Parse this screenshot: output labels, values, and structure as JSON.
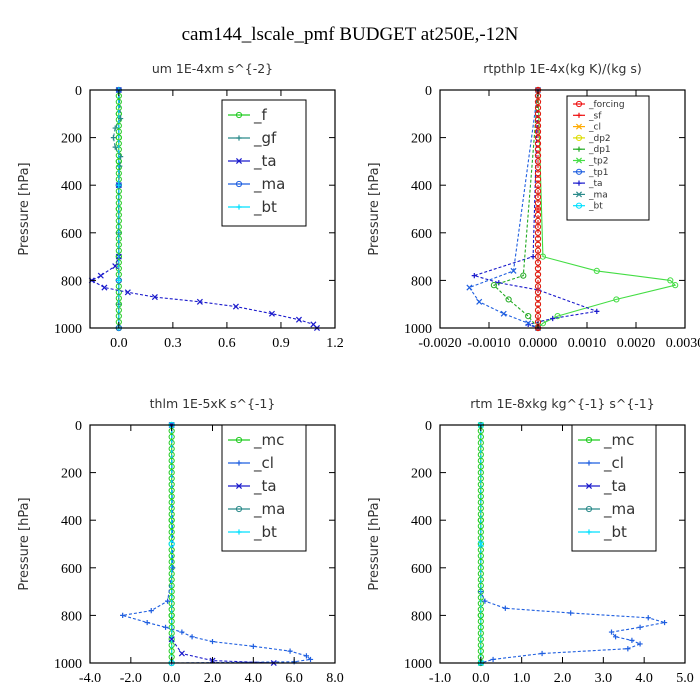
{
  "figure_title": "cam144_lscale_pmf  BUDGET at250E,-12N",
  "colors": {
    "green": "#22cc22",
    "teal": "#2a8a8a",
    "blue": "#1f5fe0",
    "navy": "#1a1acc",
    "cyan": "#00e0ff",
    "red": "#ee1111",
    "orange": "#ffaa00",
    "yellow": "#dddd00",
    "lime": "#44dd44"
  },
  "chart_data": [
    {
      "type": "line",
      "title": "um   1E-4xm s^{-2}",
      "ylabel": "Pressure [hPa]",
      "xlim": [
        -0.16,
        1.2
      ],
      "ylim": [
        1000,
        0
      ],
      "xticks": [
        "0.0",
        "0.3",
        "0.6",
        "0.9",
        "1.2"
      ],
      "xtick_values": [
        0,
        0.3,
        0.6,
        0.9,
        1.2
      ],
      "yticks": [
        "0",
        "200",
        "400",
        "600",
        "800",
        "1000"
      ],
      "ytick_values": [
        0,
        200,
        400,
        600,
        800,
        1000
      ],
      "legend": [
        "_f",
        "_gf",
        "_ta",
        "_ma",
        "_bt"
      ],
      "legend_colors": [
        "#22cc22",
        "#2a8a8a",
        "#1a1acc",
        "#1f5fe0",
        "#00e0ff"
      ],
      "series": [
        {
          "name": "_f",
          "color": "#22cc22",
          "x": [
            0,
            0,
            0,
            0,
            0,
            0,
            0,
            0,
            0,
            0,
            0
          ],
          "y": [
            0,
            100,
            200,
            300,
            400,
            500,
            600,
            700,
            800,
            900,
            1000
          ]
        },
        {
          "name": "_gf",
          "color": "#2a8a8a",
          "x": [
            0,
            0.01,
            -0.02,
            -0.03,
            -0.02,
            0.01,
            0.005,
            0,
            0,
            0,
            0,
            0
          ],
          "y": [
            0,
            120,
            160,
            200,
            240,
            280,
            320,
            400,
            600,
            800,
            900,
            1000
          ]
        },
        {
          "name": "_ta",
          "color": "#1a1acc",
          "x": [
            0,
            0,
            0,
            -0.02,
            -0.1,
            -0.15,
            -0.08,
            0.05,
            0.2,
            0.45,
            0.65,
            0.85,
            1.0,
            1.08,
            1.1
          ],
          "y": [
            0,
            400,
            700,
            740,
            780,
            800,
            830,
            850,
            870,
            890,
            910,
            940,
            965,
            985,
            1000
          ]
        },
        {
          "name": "_ma",
          "color": "#1f5fe0",
          "x": [
            0,
            0,
            0,
            0
          ],
          "y": [
            0,
            400,
            800,
            1000
          ]
        },
        {
          "name": "_bt",
          "color": "#00e0ff",
          "x": [
            0,
            0,
            0,
            0
          ],
          "y": [
            0,
            400,
            800,
            1000
          ]
        }
      ]
    },
    {
      "type": "line",
      "title": "rtpthlp   1E-4x(kg K)/(kg s)",
      "ylabel": "Pressure [hPa]",
      "xlim": [
        -0.002,
        0.003
      ],
      "ylim": [
        1000,
        0
      ],
      "xticks": [
        "-0.0020",
        "-0.0010",
        "0.0000",
        "0.0010",
        "0.0020",
        "0.0030"
      ],
      "xtick_values": [
        -0.002,
        -0.001,
        0,
        0.001,
        0.002,
        0.003
      ],
      "yticks": [
        "0",
        "200",
        "400",
        "600",
        "800",
        "1000"
      ],
      "ytick_values": [
        0,
        200,
        400,
        600,
        800,
        1000
      ],
      "legend": [
        "_forcing",
        "_sf",
        "_cl",
        "_dp2",
        "_dp1",
        "_tp2",
        "_tp1",
        "_ta",
        "_ma",
        "_bt"
      ],
      "legend_colors": [
        "#ee1111",
        "#ee1111",
        "#ffaa00",
        "#dddd00",
        "#22aa22",
        "#44dd44",
        "#1f5fe0",
        "#1a1acc",
        "#2a8a8a",
        "#00e0ff"
      ],
      "series": [
        {
          "name": "_tp2",
          "color": "#44dd44",
          "x": [
            0,
            0.0001,
            0.0012,
            0.0027,
            0.0028,
            0.0016,
            0.0004,
            0.0001,
            0
          ],
          "y": [
            0,
            700,
            760,
            800,
            820,
            880,
            950,
            980,
            1000
          ]
        },
        {
          "name": "_ta",
          "color": "#1a1acc",
          "x": [
            0,
            -0.0001,
            -0.0013,
            -0.0008,
            0,
            0.0012,
            0.0003,
            -0.0002,
            0
          ],
          "y": [
            0,
            700,
            780,
            810,
            840,
            930,
            960,
            985,
            1000
          ]
        },
        {
          "name": "_tp1",
          "color": "#1f5fe0",
          "x": [
            0,
            -0.0005,
            -0.0014,
            -0.0012,
            -0.0007,
            -0.0002,
            0
          ],
          "y": [
            0,
            760,
            830,
            890,
            940,
            980,
            1000
          ]
        },
        {
          "name": "_dp1",
          "color": "#22aa22",
          "x": [
            0,
            -0.0003,
            -0.0009,
            -0.0006,
            -0.0002,
            0
          ],
          "y": [
            0,
            780,
            820,
            880,
            950,
            1000
          ]
        },
        {
          "name": "_forcing",
          "color": "#ee1111",
          "x": [
            0,
            0,
            0
          ],
          "y": [
            0,
            500,
            1000
          ]
        }
      ]
    },
    {
      "type": "line",
      "title": "thlm   1E-5xK s^{-1}",
      "ylabel": "Pressure [hPa]",
      "xlim": [
        -4,
        8
      ],
      "ylim": [
        1000,
        0
      ],
      "xticks": [
        "-4.0",
        "-2.0",
        "0.0",
        "2.0",
        "4.0",
        "6.0",
        "8.0"
      ],
      "xtick_values": [
        -4,
        -2,
        0,
        2,
        4,
        6,
        8
      ],
      "yticks": [
        "0",
        "200",
        "400",
        "600",
        "800",
        "1000"
      ],
      "ytick_values": [
        0,
        200,
        400,
        600,
        800,
        1000
      ],
      "legend": [
        "_mc",
        "_cl",
        "_ta",
        "_ma",
        "_bt"
      ],
      "legend_colors": [
        "#22cc22",
        "#1f5fe0",
        "#1a1acc",
        "#2a8a8a",
        "#00e0ff"
      ],
      "series": [
        {
          "name": "_mc",
          "color": "#22cc22",
          "x": [
            0,
            0,
            0,
            0
          ],
          "y": [
            0,
            400,
            800,
            1000
          ]
        },
        {
          "name": "_cl",
          "color": "#1f5fe0",
          "x": [
            0,
            0.05,
            -0.2,
            -1.0,
            -2.4,
            -1.2,
            -0.3,
            0.5,
            1.0,
            2.0,
            4.0,
            5.8,
            6.6,
            6.8,
            6.0,
            0
          ],
          "y": [
            0,
            600,
            740,
            780,
            800,
            830,
            850,
            870,
            890,
            910,
            930,
            950,
            970,
            985,
            995,
            1000
          ]
        },
        {
          "name": "_ta",
          "color": "#1a1acc",
          "x": [
            0,
            0,
            0.5,
            2.0,
            5.0
          ],
          "y": [
            0,
            900,
            960,
            990,
            1000
          ]
        },
        {
          "name": "_bt",
          "color": "#00e0ff",
          "x": [
            0,
            0,
            0
          ],
          "y": [
            0,
            500,
            1000
          ]
        }
      ]
    },
    {
      "type": "line",
      "title": "rtm   1E-8xkg kg^{-1} s^{-1}",
      "ylabel": "Pressure [hPa]",
      "xlim": [
        -1,
        5
      ],
      "ylim": [
        1000,
        0
      ],
      "xticks": [
        "-1.0",
        "0.0",
        "1.0",
        "2.0",
        "3.0",
        "4.0",
        "5.0"
      ],
      "xtick_values": [
        -1,
        0,
        1,
        2,
        3,
        4,
        5
      ],
      "yticks": [
        "0",
        "200",
        "400",
        "600",
        "800",
        "1000"
      ],
      "ytick_values": [
        0,
        200,
        400,
        600,
        800,
        1000
      ],
      "legend": [
        "_mc",
        "_cl",
        "_ta",
        "_ma",
        "_bt"
      ],
      "legend_colors": [
        "#22cc22",
        "#1f5fe0",
        "#1a1acc",
        "#2a8a8a",
        "#00e0ff"
      ],
      "series": [
        {
          "name": "_mc",
          "color": "#22cc22",
          "x": [
            0,
            0,
            0,
            0
          ],
          "y": [
            0,
            400,
            800,
            1000
          ]
        },
        {
          "name": "_cl",
          "color": "#1f5fe0",
          "x": [
            0,
            0,
            0.1,
            0.6,
            2.2,
            4.1,
            4.5,
            3.9,
            3.2,
            3.3,
            3.7,
            3.9,
            3.6,
            1.5,
            0.3,
            0
          ],
          "y": [
            0,
            700,
            740,
            770,
            790,
            810,
            830,
            850,
            870,
            890,
            905,
            920,
            940,
            960,
            985,
            1000
          ]
        },
        {
          "name": "_bt",
          "color": "#00e0ff",
          "x": [
            0,
            0,
            0
          ],
          "y": [
            0,
            500,
            1000
          ]
        }
      ]
    }
  ]
}
